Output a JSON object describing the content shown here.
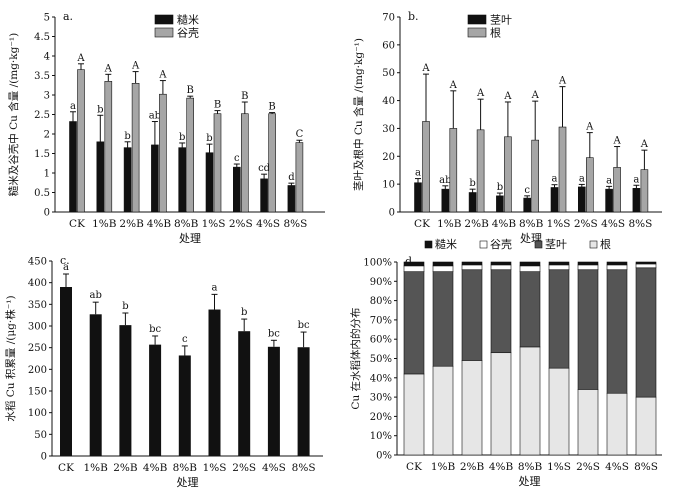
{
  "colors": {
    "black": "#111111",
    "gray": "#a6a6a6",
    "dark_gray": "#555555",
    "light_gray": "#e6e6e6",
    "white": "#ffffff"
  },
  "chart_data": [
    {
      "id": "a",
      "panel_label": "a.",
      "type": "bar",
      "categories": [
        "CK",
        "1%B",
        "2%B",
        "4%B",
        "8%B",
        "1%S",
        "2%S",
        "4%S",
        "8%S"
      ],
      "ylabel": "糙米及谷壳中 Cu 含量 /(mg·kg⁻¹)",
      "xlabel": "处理",
      "ylim": [
        0,
        5
      ],
      "yticks": [
        0,
        0.5,
        1,
        1.5,
        2,
        2.5,
        3,
        3.5,
        4,
        4.5,
        5
      ],
      "legend_position": "top-center",
      "series": [
        {
          "name": "糙米",
          "color": "#111111",
          "values": [
            2.32,
            1.8,
            1.65,
            1.72,
            1.65,
            1.52,
            1.15,
            0.85,
            0.68
          ],
          "errors": [
            0.25,
            0.68,
            0.15,
            0.6,
            0.12,
            0.22,
            0.08,
            0.12,
            0.06
          ],
          "letters": [
            "a",
            "b",
            "b",
            "ab",
            "b",
            "b",
            "c",
            "cd",
            "d"
          ]
        },
        {
          "name": "谷壳",
          "color": "#a6a6a6",
          "values": [
            3.65,
            3.35,
            3.3,
            3.02,
            2.92,
            2.52,
            2.52,
            2.52,
            1.78
          ],
          "errors": [
            0.15,
            0.18,
            0.3,
            0.35,
            0.05,
            0.08,
            0.3,
            0.03,
            0.06
          ],
          "letters": [
            "A",
            "A",
            "A",
            "A",
            "B",
            "B",
            "B",
            "B",
            "C"
          ]
        }
      ]
    },
    {
      "id": "b",
      "panel_label": "b.",
      "type": "bar",
      "categories": [
        "CK",
        "1%B",
        "2%B",
        "4%B",
        "8%B",
        "1%S",
        "2%S",
        "4%S",
        "8%S"
      ],
      "ylabel": "茎叶及根中 Cu 含量 /(mg·kg⁻¹)",
      "xlabel": "处理",
      "ylim": [
        0,
        70
      ],
      "yticks": [
        0,
        10,
        20,
        30,
        40,
        50,
        60,
        70
      ],
      "legend_position": "top-left",
      "series": [
        {
          "name": "茎叶",
          "color": "#111111",
          "values": [
            10.5,
            8.2,
            7.0,
            5.8,
            5.0,
            8.8,
            9.0,
            8.2,
            8.5
          ],
          "errors": [
            1.5,
            1.2,
            1.2,
            1.0,
            0.8,
            1.0,
            0.9,
            1.0,
            1.1
          ],
          "letters": [
            "a",
            "ab",
            "b",
            "b",
            "c",
            "a",
            "a",
            "a",
            "a"
          ]
        },
        {
          "name": "根",
          "color": "#a6a6a6",
          "values": [
            32.5,
            30.0,
            29.5,
            27.0,
            25.8,
            30.5,
            19.5,
            16.0,
            15.2
          ],
          "errors": [
            17.0,
            13.5,
            11.0,
            12.5,
            14.0,
            14.5,
            9.0,
            7.5,
            7.0
          ],
          "letters": [
            "A",
            "A",
            "A",
            "A",
            "A",
            "A",
            "A",
            "A",
            "A"
          ]
        }
      ]
    },
    {
      "id": "c",
      "panel_label": "c.",
      "type": "bar",
      "categories": [
        "CK",
        "1%B",
        "2%B",
        "4%B",
        "8%B",
        "1%S",
        "2%S",
        "4%S",
        "8%S"
      ],
      "ylabel": "水稻 Cu 积累量 /(μg·株⁻¹)",
      "xlabel": "处理",
      "ylim": [
        0,
        450
      ],
      "yticks": [
        0,
        50,
        100,
        150,
        200,
        250,
        300,
        350,
        400,
        450
      ],
      "series": [
        {
          "name": "Cu",
          "color": "#111111",
          "values": [
            390,
            327,
            302,
            257,
            232,
            338,
            288,
            252,
            251
          ],
          "errors": [
            30,
            28,
            28,
            20,
            22,
            35,
            28,
            15,
            35
          ],
          "letters": [
            "a",
            "ab",
            "b",
            "bc",
            "c",
            "a",
            "b",
            "bc",
            "bc"
          ]
        }
      ]
    },
    {
      "id": "d",
      "panel_label": "d.",
      "type": "bar",
      "stacked": true,
      "categories": [
        "CK",
        "1%B",
        "2%B",
        "4%B",
        "8%B",
        "1%S",
        "2%S",
        "4%S",
        "8%S"
      ],
      "ylabel": "Cu 在水稻体内的分布",
      "xlabel": "处理",
      "ylim": [
        0,
        100
      ],
      "yticks": [
        "0%",
        "10%",
        "20%",
        "30%",
        "40%",
        "50%",
        "60%",
        "70%",
        "80%",
        "90%",
        "100%"
      ],
      "legend_position": "top",
      "series": [
        {
          "name": "根",
          "color": "#e6e6e6",
          "values": [
            42,
            46,
            49,
            53,
            56,
            45,
            34,
            32,
            30
          ]
        },
        {
          "name": "茎叶",
          "color": "#555555",
          "values": [
            53,
            49,
            47,
            43,
            39,
            51,
            62,
            64,
            67
          ]
        },
        {
          "name": "谷壳",
          "color": "#ffffff",
          "values": [
            3,
            3,
            2.5,
            2.5,
            3,
            2.5,
            2.5,
            2.5,
            2
          ]
        },
        {
          "name": "糙米",
          "color": "#111111",
          "values": [
            2,
            2,
            1.5,
            1.5,
            2,
            1.5,
            1.5,
            1.5,
            1
          ]
        }
      ],
      "legend_order": [
        "糙米",
        "谷壳",
        "茎叶",
        "根"
      ]
    }
  ]
}
